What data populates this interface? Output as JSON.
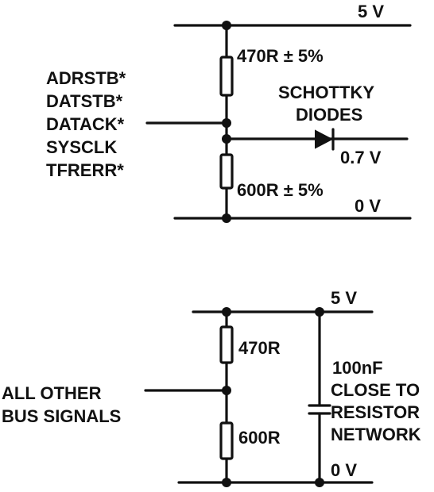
{
  "top_circuit": {
    "supply_label": "5 V",
    "ground_label": "0 V",
    "upper_resistor_label": "470R ± 5%",
    "lower_resistor_label": "600R ± 5%",
    "diode_label_line1": "SCHOTTKY",
    "diode_label_line2": "DIODES",
    "clamp_voltage_label": "0.7 V",
    "signals": [
      "ADRSTB*",
      "DATSTB*",
      "DATACK*",
      "SYSCLK",
      "TFRERR*"
    ]
  },
  "bottom_circuit": {
    "supply_label": "5 V",
    "ground_label": "0 V",
    "upper_resistor_label": "470R",
    "lower_resistor_label": "600R",
    "signal_label_line1": "ALL OTHER",
    "signal_label_line2": "BUS SIGNALS",
    "capacitor_label_lines": [
      "100nF",
      "CLOSE TO",
      "RESISTOR",
      "NETWORK"
    ]
  }
}
